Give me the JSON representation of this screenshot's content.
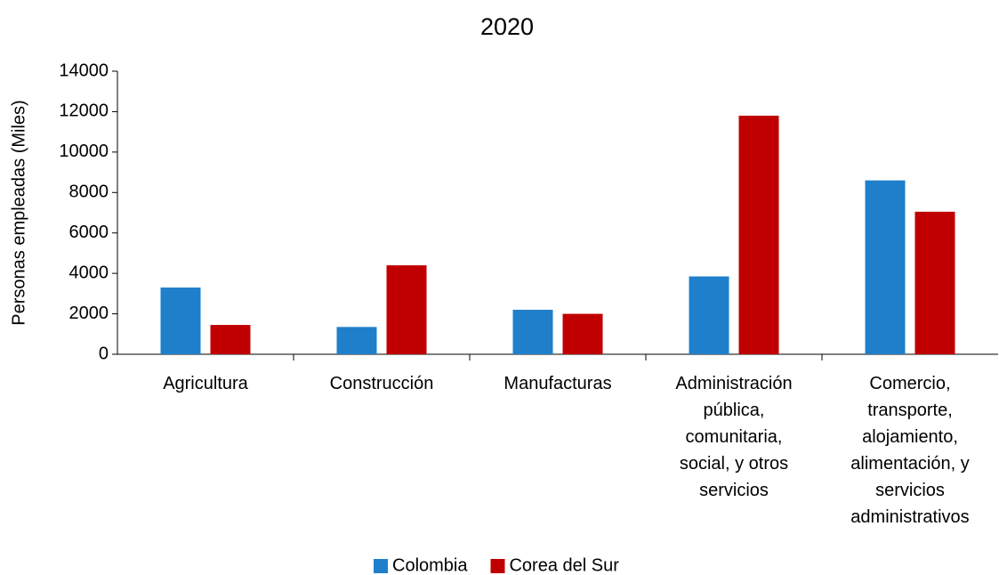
{
  "chart_data": {
    "type": "bar",
    "title": "2020",
    "y_label": "Personas empleadas (Miles)",
    "categories": [
      "Agricultura",
      "Construcción",
      "Manufacturas",
      "Administración pública, comunitaria, social, y otros servicios",
      "Comercio, transporte, alojamiento, alimentación, y servicios administrativos"
    ],
    "series": [
      {
        "name": "Colombia",
        "color": "#1f7fcb",
        "values": [
          3300,
          1350,
          2200,
          3850,
          8600
        ]
      },
      {
        "name": "Corea del Sur",
        "color": "#c00000",
        "values": [
          1450,
          4400,
          2000,
          11800,
          7050
        ]
      }
    ],
    "ylim": [
      0,
      14000
    ],
    "yticks": [
      0,
      2000,
      4000,
      6000,
      8000,
      10000,
      12000,
      14000
    ],
    "grid": false,
    "legend": "bottom"
  }
}
